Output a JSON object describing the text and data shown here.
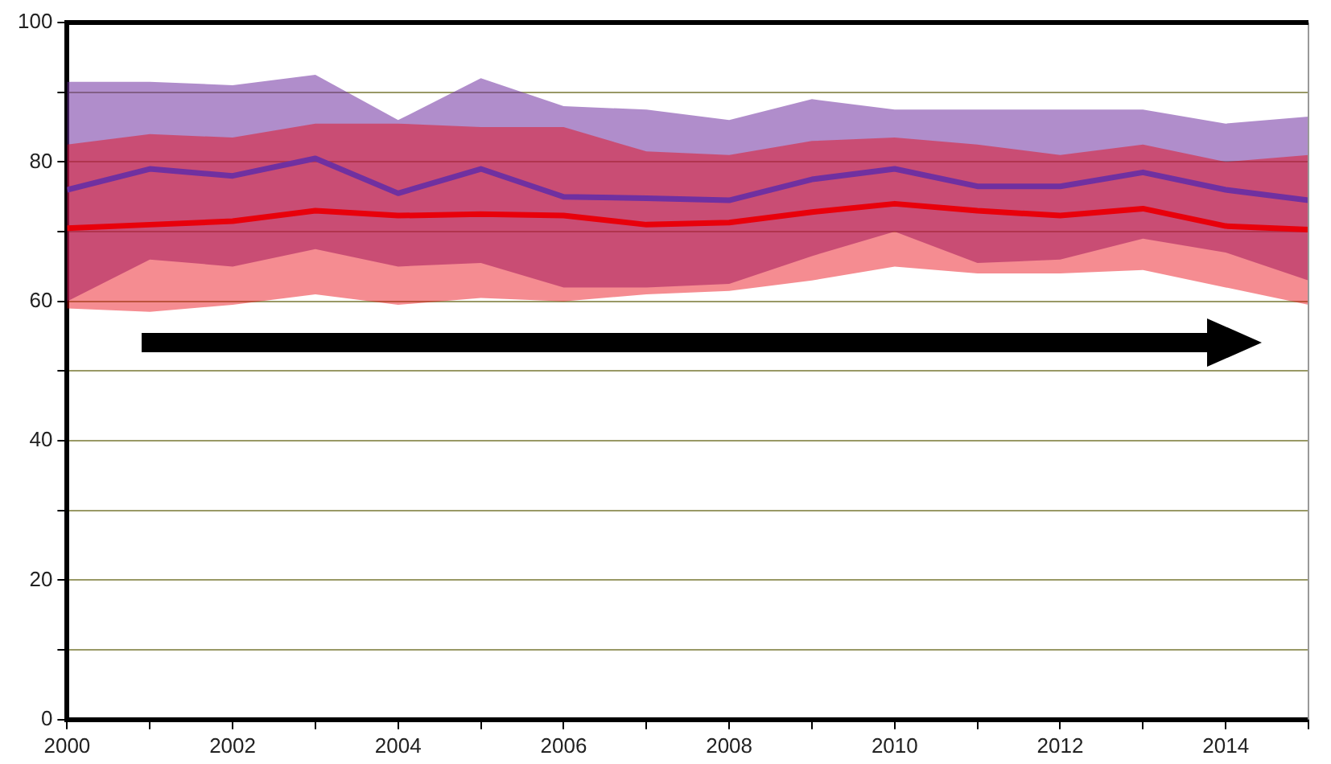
{
  "chart_data": {
    "type": "line",
    "x": [
      2000,
      2001,
      2002,
      2003,
      2004,
      2005,
      2006,
      2007,
      2008,
      2009,
      2010,
      2011,
      2012,
      2013,
      2014,
      2015
    ],
    "xlim": [
      2000,
      2015
    ],
    "xticks": [
      2000,
      {
        "value": 2001,
        "label": null
      },
      2002,
      {
        "value": 2003,
        "label": null
      },
      2004,
      {
        "value": 2005,
        "label": null
      },
      2006,
      {
        "value": 2007,
        "label": null
      },
      2008,
      {
        "value": 2009,
        "label": null
      },
      2010,
      {
        "value": 2011,
        "label": null
      },
      2012,
      {
        "value": 2013,
        "label": null
      },
      2014,
      {
        "value": 2015,
        "label": null
      }
    ],
    "ylim": [
      0,
      100
    ],
    "yticks": [
      0,
      {
        "value": 10,
        "label": null
      },
      20,
      {
        "value": 30,
        "label": null
      },
      40,
      {
        "value": 50,
        "label": null
      },
      60,
      {
        "value": 70,
        "label": null
      },
      80,
      {
        "value": 90,
        "label": null
      },
      100
    ],
    "grid": "y",
    "legend": false,
    "marker": "none",
    "line_style": "solid",
    "series": [
      {
        "color": "#7030a0",
        "values": [
          76,
          79,
          78,
          80.5,
          75.5,
          79,
          75,
          74.8,
          74.5,
          77.5,
          79,
          76.5,
          76.5,
          78.5,
          76,
          74.5
        ],
        "lower": [
          60,
          66,
          65,
          67.5,
          65,
          65.5,
          62,
          62,
          62.5,
          66.5,
          70,
          65.5,
          66,
          69,
          67,
          63
        ],
        "upper": [
          91.5,
          91.5,
          91,
          92.5,
          86,
          92,
          88,
          87.5,
          86,
          89,
          87.5,
          87.5,
          87.5,
          87.5,
          85.5,
          86.5
        ]
      },
      {
        "color": "#e8000b",
        "values": [
          70.5,
          71,
          71.5,
          73,
          72.3,
          72.5,
          72.3,
          71,
          71.3,
          72.8,
          74,
          73,
          72.3,
          73.3,
          70.8,
          70.3
        ],
        "lower": [
          59,
          58.5,
          59.5,
          61,
          59.5,
          60.5,
          60,
          61,
          61.5,
          63,
          65,
          64,
          64,
          64.5,
          62,
          59.5
        ],
        "upper": [
          82.5,
          84,
          83.5,
          85.5,
          85.5,
          85,
          85,
          81.5,
          81,
          83,
          83.5,
          82.5,
          81,
          82.5,
          80,
          81
        ]
      }
    ]
  }
}
